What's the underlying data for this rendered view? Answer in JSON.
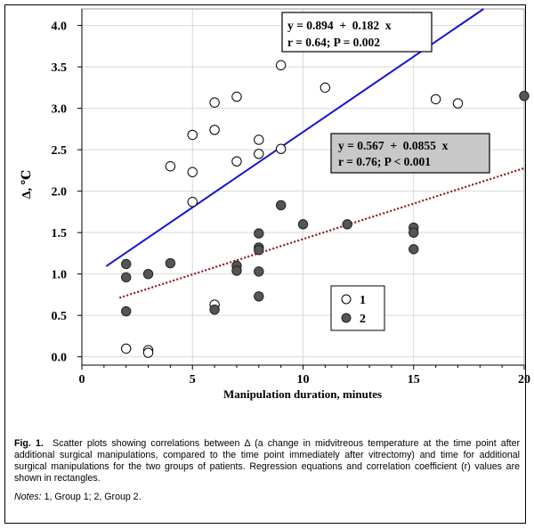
{
  "chart_data": {
    "type": "scatter",
    "xlabel": "Manipulation duration, minutes",
    "ylabel": "Δ, ℃",
    "xlim": [
      0,
      20
    ],
    "ylim": [
      -0.1,
      4.2
    ],
    "xticks": [
      0,
      5,
      10,
      15,
      20
    ],
    "xtick_labels": [
      "0",
      "5",
      "10",
      "15",
      "20"
    ],
    "yticks": [
      0.0,
      0.5,
      1.0,
      1.5,
      2.0,
      2.5,
      3.0,
      3.5,
      4.0
    ],
    "ytick_labels": [
      "0.0",
      "0.5",
      "1.0",
      "1.5",
      "2.0",
      "2.5",
      "3.0",
      "3.5",
      "4.0"
    ],
    "grid": true,
    "legend": {
      "position": "bottom-right",
      "entries": [
        "1",
        "2"
      ]
    },
    "series": [
      {
        "name": "1",
        "marker": "open-circle",
        "points": [
          [
            2,
            0.1
          ],
          [
            3,
            0.08
          ],
          [
            3,
            0.05
          ],
          [
            4,
            2.3
          ],
          [
            5,
            2.68
          ],
          [
            5,
            2.23
          ],
          [
            5,
            1.87
          ],
          [
            6,
            3.07
          ],
          [
            6,
            2.74
          ],
          [
            6,
            0.63
          ],
          [
            7,
            3.14
          ],
          [
            7,
            2.36
          ],
          [
            8,
            2.62
          ],
          [
            8,
            2.45
          ],
          [
            9,
            3.52
          ],
          [
            9,
            2.51
          ],
          [
            11,
            3.25
          ],
          [
            16,
            3.11
          ],
          [
            17,
            3.06
          ]
        ]
      },
      {
        "name": "2",
        "marker": "filled-circle",
        "points": [
          [
            2,
            1.12
          ],
          [
            2,
            0.96
          ],
          [
            2,
            0.55
          ],
          [
            3,
            1.0
          ],
          [
            4,
            1.13
          ],
          [
            6,
            0.57
          ],
          [
            7,
            1.1
          ],
          [
            7,
            1.04
          ],
          [
            8,
            1.49
          ],
          [
            8,
            1.32
          ],
          [
            8,
            1.29
          ],
          [
            8,
            1.03
          ],
          [
            8,
            0.73
          ],
          [
            9,
            1.83
          ],
          [
            10,
            1.6
          ],
          [
            12,
            1.6
          ],
          [
            15,
            1.56
          ],
          [
            15,
            1.5
          ],
          [
            15,
            1.3
          ],
          [
            20,
            3.15
          ]
        ]
      }
    ],
    "regression_lines": [
      {
        "series": "1",
        "style": "solid",
        "color": "#1515d6",
        "x_range": [
          1.1,
          20
        ],
        "intercept": 0.894,
        "slope": 0.182,
        "label_line1": "y = 0.894  +  0.182  x",
        "label_line2": "r = 0.64; P = 0.002"
      },
      {
        "series": "2",
        "style": "dotted",
        "color": "#8b1a1a",
        "x_range": [
          1.7,
          20
        ],
        "intercept": 0.567,
        "slope": 0.0855,
        "label_line1": "y = 0.567  +  0.0855  x",
        "label_line2": "r = 0.76; P < 0.001"
      }
    ]
  },
  "caption": {
    "label": "Fig. 1.",
    "text": "Scatter plots showing correlations between Δ (a change in midvitreous temperature at the time point after additional surgical manipulations, compared to the time point immediately after vitrectomy) and time for additional surgical manipulations for the two groups of patients. Regression equations and correlation coefficient (r) values are shown in rectangles.",
    "notes_label": "Notes:",
    "notes_text": "1, Group 1; 2, Group 2."
  },
  "colors": {
    "open_marker_fill": "#ffffff",
    "filled_marker": "#555555",
    "eq_box_2_fill": "#c8c8c8"
  }
}
